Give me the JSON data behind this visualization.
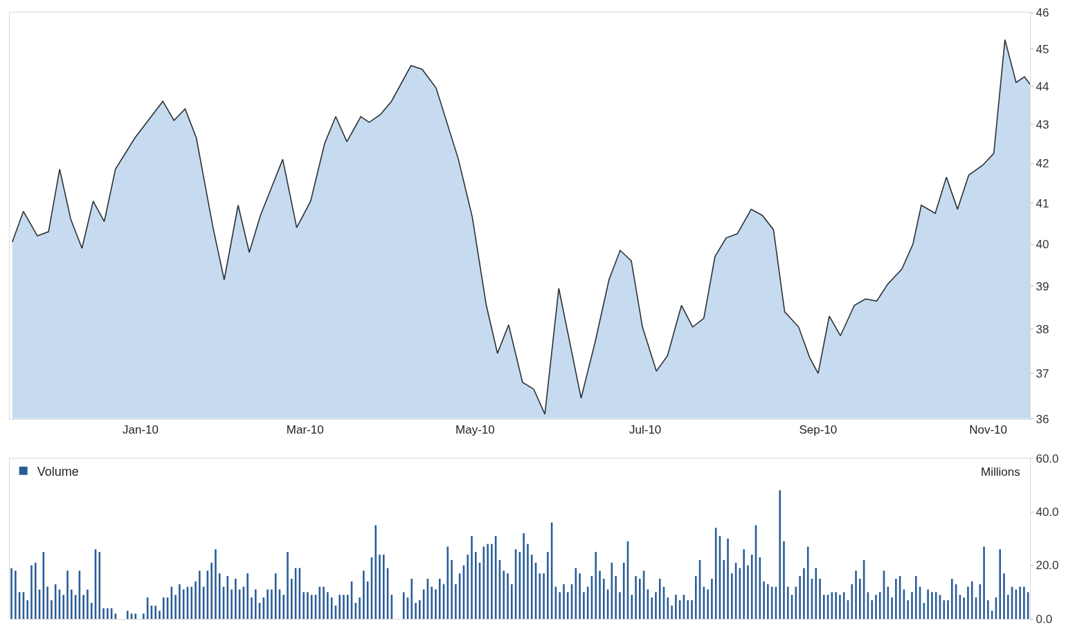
{
  "chart_data": [
    {
      "type": "area",
      "x": [
        "2009-11-16",
        "2009-11-20",
        "2009-11-25",
        "2009-11-29",
        "2009-12-03",
        "2009-12-07",
        "2009-12-11",
        "2009-12-15",
        "2009-12-19",
        "2009-12-23",
        "2009-12-30",
        "2010-01-09",
        "2010-01-13",
        "2010-01-17",
        "2010-01-21",
        "2010-01-27",
        "2010-01-31",
        "2010-02-05",
        "2010-02-09",
        "2010-02-13",
        "2010-02-21",
        "2010-02-26",
        "2010-03-03",
        "2010-03-08",
        "2010-03-12",
        "2010-03-16",
        "2010-03-21",
        "2010-03-24",
        "2010-03-28",
        "2010-04-01",
        "2010-04-08",
        "2010-04-12",
        "2010-04-17",
        "2010-04-25",
        "2010-04-30",
        "2010-05-05",
        "2010-05-09",
        "2010-05-13",
        "2010-05-18",
        "2010-05-22",
        "2010-05-26",
        "2010-05-31",
        "2010-06-08",
        "2010-06-13",
        "2010-06-18",
        "2010-06-22",
        "2010-06-26",
        "2010-06-30",
        "2010-07-05",
        "2010-07-09",
        "2010-07-14",
        "2010-07-18",
        "2010-07-22",
        "2010-07-26",
        "2010-07-30",
        "2010-08-03",
        "2010-08-08",
        "2010-08-12",
        "2010-08-16",
        "2010-08-20",
        "2010-08-25",
        "2010-08-29",
        "2010-09-01",
        "2010-09-05",
        "2010-09-09",
        "2010-09-14",
        "2010-09-18",
        "2010-09-22",
        "2010-09-26",
        "2010-10-01",
        "2010-10-05",
        "2010-10-08",
        "2010-10-13",
        "2010-10-17",
        "2010-10-21",
        "2010-10-25",
        "2010-10-30",
        "2010-11-03",
        "2010-11-07",
        "2010-11-11",
        "2010-11-14",
        "2010-11-16"
      ],
      "series": [
        {
          "color": "#c6dbef",
          "values": [
            40.05,
            40.8,
            40.2,
            40.3,
            41.85,
            40.6,
            39.9,
            41.05,
            40.55,
            41.85,
            42.65,
            43.6,
            43.1,
            43.4,
            42.65,
            40.4,
            39.15,
            40.95,
            39.8,
            40.7,
            42.1,
            40.4,
            41.05,
            42.5,
            43.2,
            42.55,
            43.2,
            43.05,
            43.25,
            43.6,
            44.55,
            44.45,
            43.95,
            42.1,
            40.65,
            38.55,
            37.45,
            38.1,
            36.8,
            36.65,
            36.1,
            38.95,
            36.45,
            37.7,
            39.15,
            39.85,
            39.6,
            38.05,
            37.05,
            37.4,
            38.55,
            38.05,
            38.25,
            39.7,
            40.15,
            40.25,
            40.85,
            40.7,
            40.35,
            38.4,
            38.05,
            37.35,
            37.0,
            38.3,
            37.85,
            38.55,
            38.7,
            38.65,
            39.05,
            39.4,
            40.0,
            40.95,
            40.75,
            41.65,
            40.85,
            41.7,
            41.95,
            42.25,
            45.25,
            44.1,
            44.25,
            44.05
          ]
        }
      ],
      "xlim": [
        "2009-11-15",
        "2010-11-16"
      ],
      "xticks": [
        {
          "value": "2010-01-01",
          "label": "Jan-10"
        },
        {
          "value": "2010-03-01",
          "label": "Mar-10"
        },
        {
          "value": "2010-05-01",
          "label": "May-10"
        },
        {
          "value": "2010-07-01",
          "label": "Jul-10"
        },
        {
          "value": "2010-09-01",
          "label": "Sep-10"
        },
        {
          "value": "2010-11-01",
          "label": "Nov-10"
        }
      ],
      "ylim": [
        36,
        46
      ],
      "yticks": [
        36,
        37,
        38,
        39,
        40,
        41,
        42,
        43,
        44,
        45,
        46
      ],
      "log": "y",
      "grid": false,
      "legend": false
    },
    {
      "type": "bar",
      "ylabel": "Millions",
      "legend": "top left",
      "tick_labels": "y",
      "grid": false,
      "ylim": [
        0,
        60
      ],
      "yticks": [
        {
          "value": 0,
          "label": "0.0"
        },
        {
          "value": 20,
          "label": "20.0"
        },
        {
          "value": 40,
          "label": "40.0"
        },
        {
          "value": 60,
          "label": "60.0"
        }
      ],
      "categories": [
        null,
        null,
        null,
        null,
        null,
        null,
        null,
        null,
        null,
        null,
        null,
        null,
        null,
        null,
        null,
        null,
        null,
        null,
        null,
        null,
        null,
        null,
        null,
        null,
        null,
        null,
        null,
        null,
        null,
        null,
        null,
        null,
        null,
        null,
        null,
        null,
        null,
        null,
        null,
        null,
        null,
        null,
        null,
        null,
        null,
        null,
        null,
        null,
        null,
        null,
        null,
        null,
        null,
        null,
        null,
        null,
        null,
        null,
        null,
        null,
        null,
        null,
        null,
        null,
        null,
        null,
        null,
        null,
        null,
        null,
        null,
        null,
        null,
        null,
        null,
        null,
        null,
        null,
        null,
        null,
        null,
        null,
        null,
        null,
        null,
        null,
        null,
        null,
        null,
        null,
        null,
        null,
        null,
        null,
        null,
        null,
        null,
        null,
        null,
        null,
        null,
        null,
        null,
        null,
        null,
        null,
        null,
        null,
        null,
        null,
        null,
        null,
        null,
        null,
        null,
        null,
        null,
        null,
        null,
        null,
        null,
        null,
        null,
        null,
        null,
        null,
        null,
        null,
        null,
        null,
        null,
        null,
        null,
        null,
        null,
        null,
        null,
        null,
        null,
        null,
        null,
        null,
        null,
        null,
        null,
        null,
        null,
        null,
        null,
        null,
        null,
        null,
        null,
        null,
        null,
        null,
        null,
        null,
        null,
        null,
        null,
        null,
        null,
        null,
        null,
        null,
        null,
        null,
        null,
        null,
        null,
        null,
        null,
        null,
        null,
        null,
        null,
        null,
        null,
        null,
        null,
        null,
        null,
        null,
        null,
        null,
        null,
        null,
        null,
        null,
        null,
        null,
        null,
        null,
        null,
        null,
        null,
        null,
        null,
        null,
        null,
        null,
        null,
        null,
        null,
        null,
        null,
        null,
        null,
        null,
        null,
        null,
        null,
        null,
        null,
        null,
        null,
        null,
        null,
        null,
        null,
        null,
        null,
        null,
        null,
        null,
        null,
        null,
        null,
        null,
        null,
        null,
        null,
        null,
        null,
        null,
        null,
        null,
        null,
        null,
        null,
        null,
        null,
        null,
        null,
        null,
        null,
        null,
        null,
        null,
        null,
        null,
        null,
        null,
        null
      ],
      "series": [
        {
          "name": "Volume",
          "color": "#2a5d98",
          "values": [
            19,
            18,
            10,
            10,
            7,
            20,
            21,
            11,
            25,
            12,
            7,
            13,
            11,
            9,
            18,
            11,
            9,
            18,
            9,
            11,
            6,
            26,
            25,
            4,
            4,
            4,
            2,
            null,
            null,
            3,
            2,
            2,
            null,
            2,
            8,
            5,
            5,
            3,
            8,
            8,
            12,
            9,
            13,
            11,
            12,
            12,
            14,
            18,
            12,
            18,
            21,
            26,
            17,
            12,
            16,
            11,
            15,
            11,
            12,
            17,
            8,
            11,
            6,
            8,
            11,
            11,
            17,
            11,
            9,
            25,
            15,
            19,
            19,
            10,
            10,
            9,
            9,
            12,
            12,
            10,
            8,
            5,
            9,
            9,
            9,
            14,
            6,
            8,
            18,
            14,
            23,
            35,
            24,
            24,
            19,
            9,
            null,
            null,
            10,
            8,
            15,
            6,
            7,
            11,
            15,
            12,
            11,
            15,
            13,
            27,
            22,
            13,
            17,
            20,
            24,
            31,
            25,
            21,
            27,
            28,
            28,
            31,
            22,
            18,
            17,
            13,
            26,
            25,
            32,
            28,
            24,
            21,
            17,
            17,
            25,
            36,
            12,
            10,
            13,
            10,
            13,
            19,
            17,
            10,
            12,
            16,
            25,
            18,
            15,
            11,
            21,
            16,
            10,
            21,
            29,
            9,
            16,
            15,
            18,
            11,
            8,
            10,
            15,
            12,
            8,
            5,
            9,
            7,
            9,
            7,
            7,
            16,
            22,
            12,
            11,
            15,
            34,
            31,
            22,
            30,
            17,
            21,
            19,
            26,
            20,
            24,
            35,
            23,
            14,
            13,
            12,
            12,
            48,
            29,
            12,
            9,
            12,
            16,
            19,
            27,
            15,
            19,
            15,
            9,
            9,
            10,
            10,
            9,
            10,
            7,
            13,
            18,
            15,
            22,
            10,
            7,
            9,
            10,
            18,
            12,
            8,
            15,
            16,
            11,
            7,
            10,
            16,
            12,
            6,
            11,
            10,
            10,
            9,
            7,
            7,
            15,
            13,
            9,
            8,
            12,
            14,
            8,
            13,
            27,
            7,
            3,
            8,
            26,
            17,
            9,
            12,
            11,
            12,
            12,
            10
          ]
        }
      ]
    }
  ]
}
